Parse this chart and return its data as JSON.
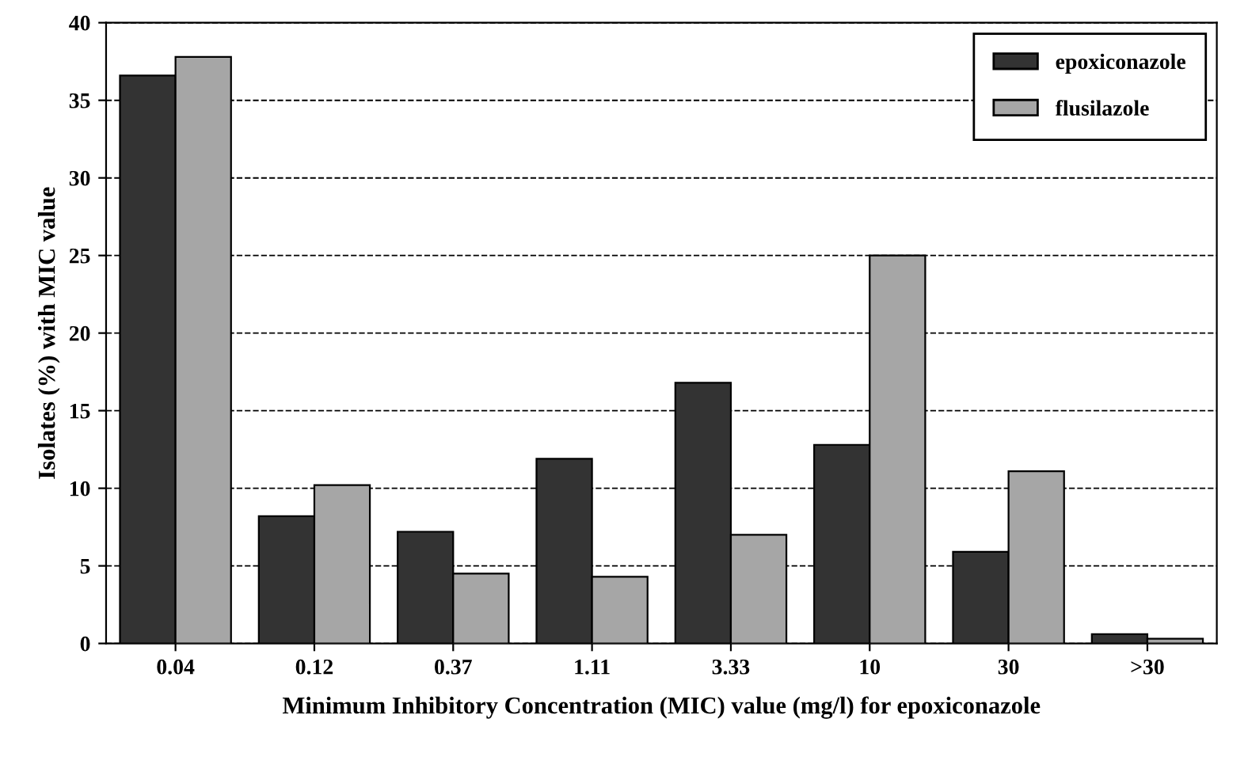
{
  "chart_data": {
    "type": "bar",
    "xlabel": "Minimum Inhibitory Concentration (MIC) value (mg/l) for epoxiconazole",
    "ylabel": "Isolates (%) with MIC value",
    "categories": [
      "0.04",
      "0.12",
      "0.37",
      "1.11",
      "3.33",
      "10",
      "30",
      ">30"
    ],
    "series": [
      {
        "name": "epoxiconazole",
        "color": "#333333",
        "values": [
          36.6,
          8.2,
          7.2,
          11.9,
          16.8,
          12.8,
          5.9,
          0.6
        ]
      },
      {
        "name": "flusilazole",
        "color": "#a6a6a6",
        "values": [
          37.8,
          10.2,
          4.5,
          4.3,
          7.0,
          25.0,
          11.1,
          0.3
        ]
      }
    ],
    "ylim": [
      0,
      40
    ],
    "yticks": [
      0,
      5,
      10,
      15,
      20,
      25,
      30,
      35,
      40
    ],
    "grid": "y",
    "line_style": "dashed",
    "legend": "top right"
  }
}
